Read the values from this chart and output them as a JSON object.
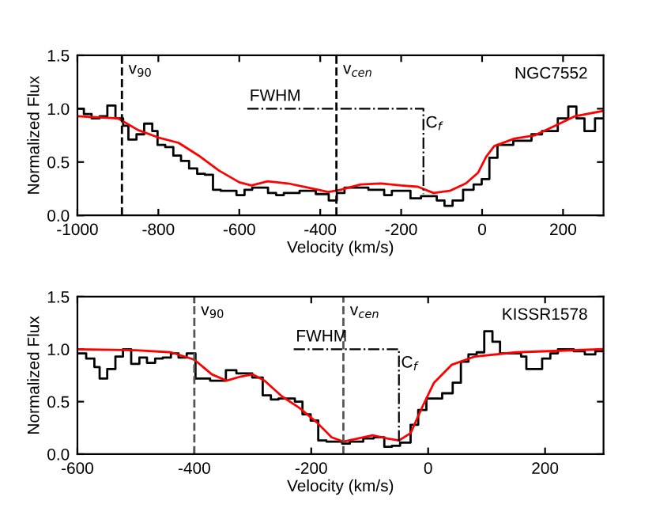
{
  "chart_data": [
    {
      "type": "step",
      "xlabel": "Velocity (km/s)",
      "ylabel": "Normalized Flux",
      "xlim": [
        -1000,
        300
      ],
      "xticks": [
        -1000,
        -800,
        -600,
        -400,
        -200,
        0,
        200
      ],
      "ylim": [
        0,
        1.5
      ],
      "yticks": [
        {
          "value": 0,
          "label": "0.0"
        },
        {
          "value": 0.5,
          "label": "0.5"
        },
        {
          "value": 1,
          "label": "1.0"
        },
        {
          "value": 1.5,
          "label": "1.5"
        }
      ],
      "grid": false,
      "legend": false,
      "series": [
        {
          "type": "step",
          "color": "#000000",
          "x": [
            -1000,
            -984,
            -965,
            -945,
            -926,
            -906,
            -887,
            -874,
            -854,
            -835,
            -815,
            -802,
            -783,
            -763,
            -744,
            -724,
            -704,
            -685,
            -665,
            -646,
            -607,
            -587,
            -568,
            -529,
            -509,
            -490,
            -451,
            -411,
            -379,
            -359,
            -340,
            -281,
            -242,
            -223,
            -177,
            -151,
            -112,
            -93,
            -73,
            -47,
            -21,
            -1,
            18,
            38,
            77,
            122,
            148,
            187,
            213,
            233,
            253,
            279,
            298
          ],
          "values": [
            1.0,
            0.95,
            0.91,
            0.93,
            1.03,
            0.91,
            0.84,
            0.71,
            0.76,
            0.86,
            0.79,
            0.66,
            0.64,
            0.56,
            0.51,
            0.44,
            0.39,
            0.38,
            0.24,
            0.23,
            0.19,
            0.24,
            0.26,
            0.21,
            0.19,
            0.21,
            0.23,
            0.2,
            0.14,
            0.21,
            0.26,
            0.24,
            0.19,
            0.23,
            0.16,
            0.18,
            0.14,
            0.09,
            0.14,
            0.24,
            0.29,
            0.34,
            0.54,
            0.66,
            0.7,
            0.76,
            0.79,
            0.91,
            1.02,
            0.91,
            0.79,
            0.91,
            0.91
          ]
        },
        {
          "type": "line",
          "color": "#ff0000",
          "x": [
            -1000,
            -900,
            -850,
            -800,
            -750,
            -700,
            -650,
            -600,
            -570,
            -530,
            -480,
            -430,
            -380,
            -350,
            -300,
            -250,
            -200,
            -160,
            -120,
            -80,
            -40,
            -10,
            10,
            30,
            80,
            130,
            180,
            230,
            300
          ],
          "values": [
            0.93,
            0.91,
            0.8,
            0.73,
            0.68,
            0.56,
            0.42,
            0.31,
            0.28,
            0.32,
            0.3,
            0.26,
            0.22,
            0.24,
            0.29,
            0.3,
            0.28,
            0.27,
            0.21,
            0.23,
            0.3,
            0.4,
            0.55,
            0.65,
            0.72,
            0.75,
            0.84,
            0.93,
            0.98
          ]
        },
        {
          "type": "line",
          "color": "#000000",
          "line_style": "dashdot",
          "x": [
            -580,
            -145,
            -145
          ],
          "values": [
            1.0,
            1.0,
            0.2
          ]
        }
      ],
      "ref_lines": [
        {
          "axis": "x",
          "value": -890,
          "label": "v$_{90}$",
          "color": "#000000",
          "line_style": "dashed"
        },
        {
          "axis": "x",
          "value": -360,
          "label": "v$_{cen}$",
          "color": "#000000",
          "line_style": "dashed"
        }
      ],
      "annotations": [
        "NGC7552",
        {
          "text": "FWHM",
          "x": -580,
          "y": 1.0
        },
        {
          "text": "C$_{f}$",
          "x": -145,
          "y": 0.75
        }
      ]
    },
    {
      "type": "step",
      "xlabel": "Velocity (km/s)",
      "ylabel": "Normalized Flux",
      "xlim": [
        -600,
        300
      ],
      "xticks": [
        -600,
        -400,
        -200,
        0,
        200
      ],
      "ylim": [
        0,
        1.5
      ],
      "yticks": [
        {
          "value": 0,
          "label": "0.0"
        },
        {
          "value": 0.5,
          "label": "0.5"
        },
        {
          "value": 1,
          "label": "1.0"
        },
        {
          "value": 1.5,
          "label": "1.5"
        }
      ],
      "grid": false,
      "legend": false,
      "series": [
        {
          "type": "step",
          "color": "#000000",
          "x": [
            -600,
            -585,
            -571,
            -562,
            -549,
            -535,
            -522,
            -508,
            -494,
            -481,
            -467,
            -454,
            -440,
            -427,
            -413,
            -398,
            -373,
            -346,
            -328,
            -301,
            -283,
            -269,
            -256,
            -228,
            -215,
            -201,
            -188,
            -174,
            -147,
            -134,
            -111,
            -93,
            -75,
            -62,
            -48,
            -30,
            -17,
            -3,
            24,
            42,
            56,
            69,
            83,
            96,
            110,
            123,
            159,
            168,
            195,
            209,
            222,
            249,
            268,
            286,
            299
          ],
          "values": [
            0.96,
            0.91,
            0.83,
            0.72,
            0.81,
            0.93,
            1.0,
            0.86,
            0.92,
            0.87,
            0.91,
            0.92,
            0.96,
            0.92,
            0.96,
            0.72,
            0.7,
            0.8,
            0.77,
            0.73,
            0.56,
            0.52,
            0.53,
            0.5,
            0.38,
            0.32,
            0.13,
            0.12,
            0.1,
            0.12,
            0.15,
            0.16,
            0.07,
            0.08,
            0.11,
            0.28,
            0.42,
            0.53,
            0.58,
            0.68,
            0.88,
            0.95,
            0.97,
            1.17,
            1.07,
            0.96,
            0.93,
            0.81,
            0.91,
            0.96,
            1.0,
            0.98,
            0.95,
            0.98,
            0.98
          ]
        },
        {
          "type": "line",
          "color": "#ff0000",
          "x": [
            -600,
            -500,
            -440,
            -400,
            -370,
            -345,
            -320,
            -300,
            -280,
            -250,
            -220,
            -190,
            -165,
            -145,
            -120,
            -95,
            -70,
            -50,
            -30,
            -10,
            10,
            40,
            80,
            150,
            300
          ],
          "values": [
            1.0,
            0.99,
            0.97,
            0.9,
            0.76,
            0.7,
            0.74,
            0.76,
            0.7,
            0.55,
            0.44,
            0.3,
            0.16,
            0.12,
            0.15,
            0.18,
            0.15,
            0.13,
            0.2,
            0.45,
            0.68,
            0.85,
            0.93,
            0.97,
            1.0
          ]
        },
        {
          "type": "line",
          "color": "#000000",
          "line_style": "dashdot",
          "x": [
            -230,
            -50,
            -50
          ],
          "values": [
            1.0,
            1.0,
            0.12
          ]
        }
      ],
      "ref_lines": [
        {
          "axis": "x",
          "value": -400,
          "label": "v$_{90}$",
          "color": "#555555",
          "line_style": "dashed"
        },
        {
          "axis": "x",
          "value": -145,
          "label": "v$_{cen}$",
          "color": "#555555",
          "line_style": "dashed"
        }
      ],
      "annotations": [
        "KISSR1578",
        {
          "text": "FWHM",
          "x": -230,
          "y": 1.0
        },
        {
          "text": "C$_{f}$",
          "x": -50,
          "y": 0.75
        }
      ]
    }
  ]
}
